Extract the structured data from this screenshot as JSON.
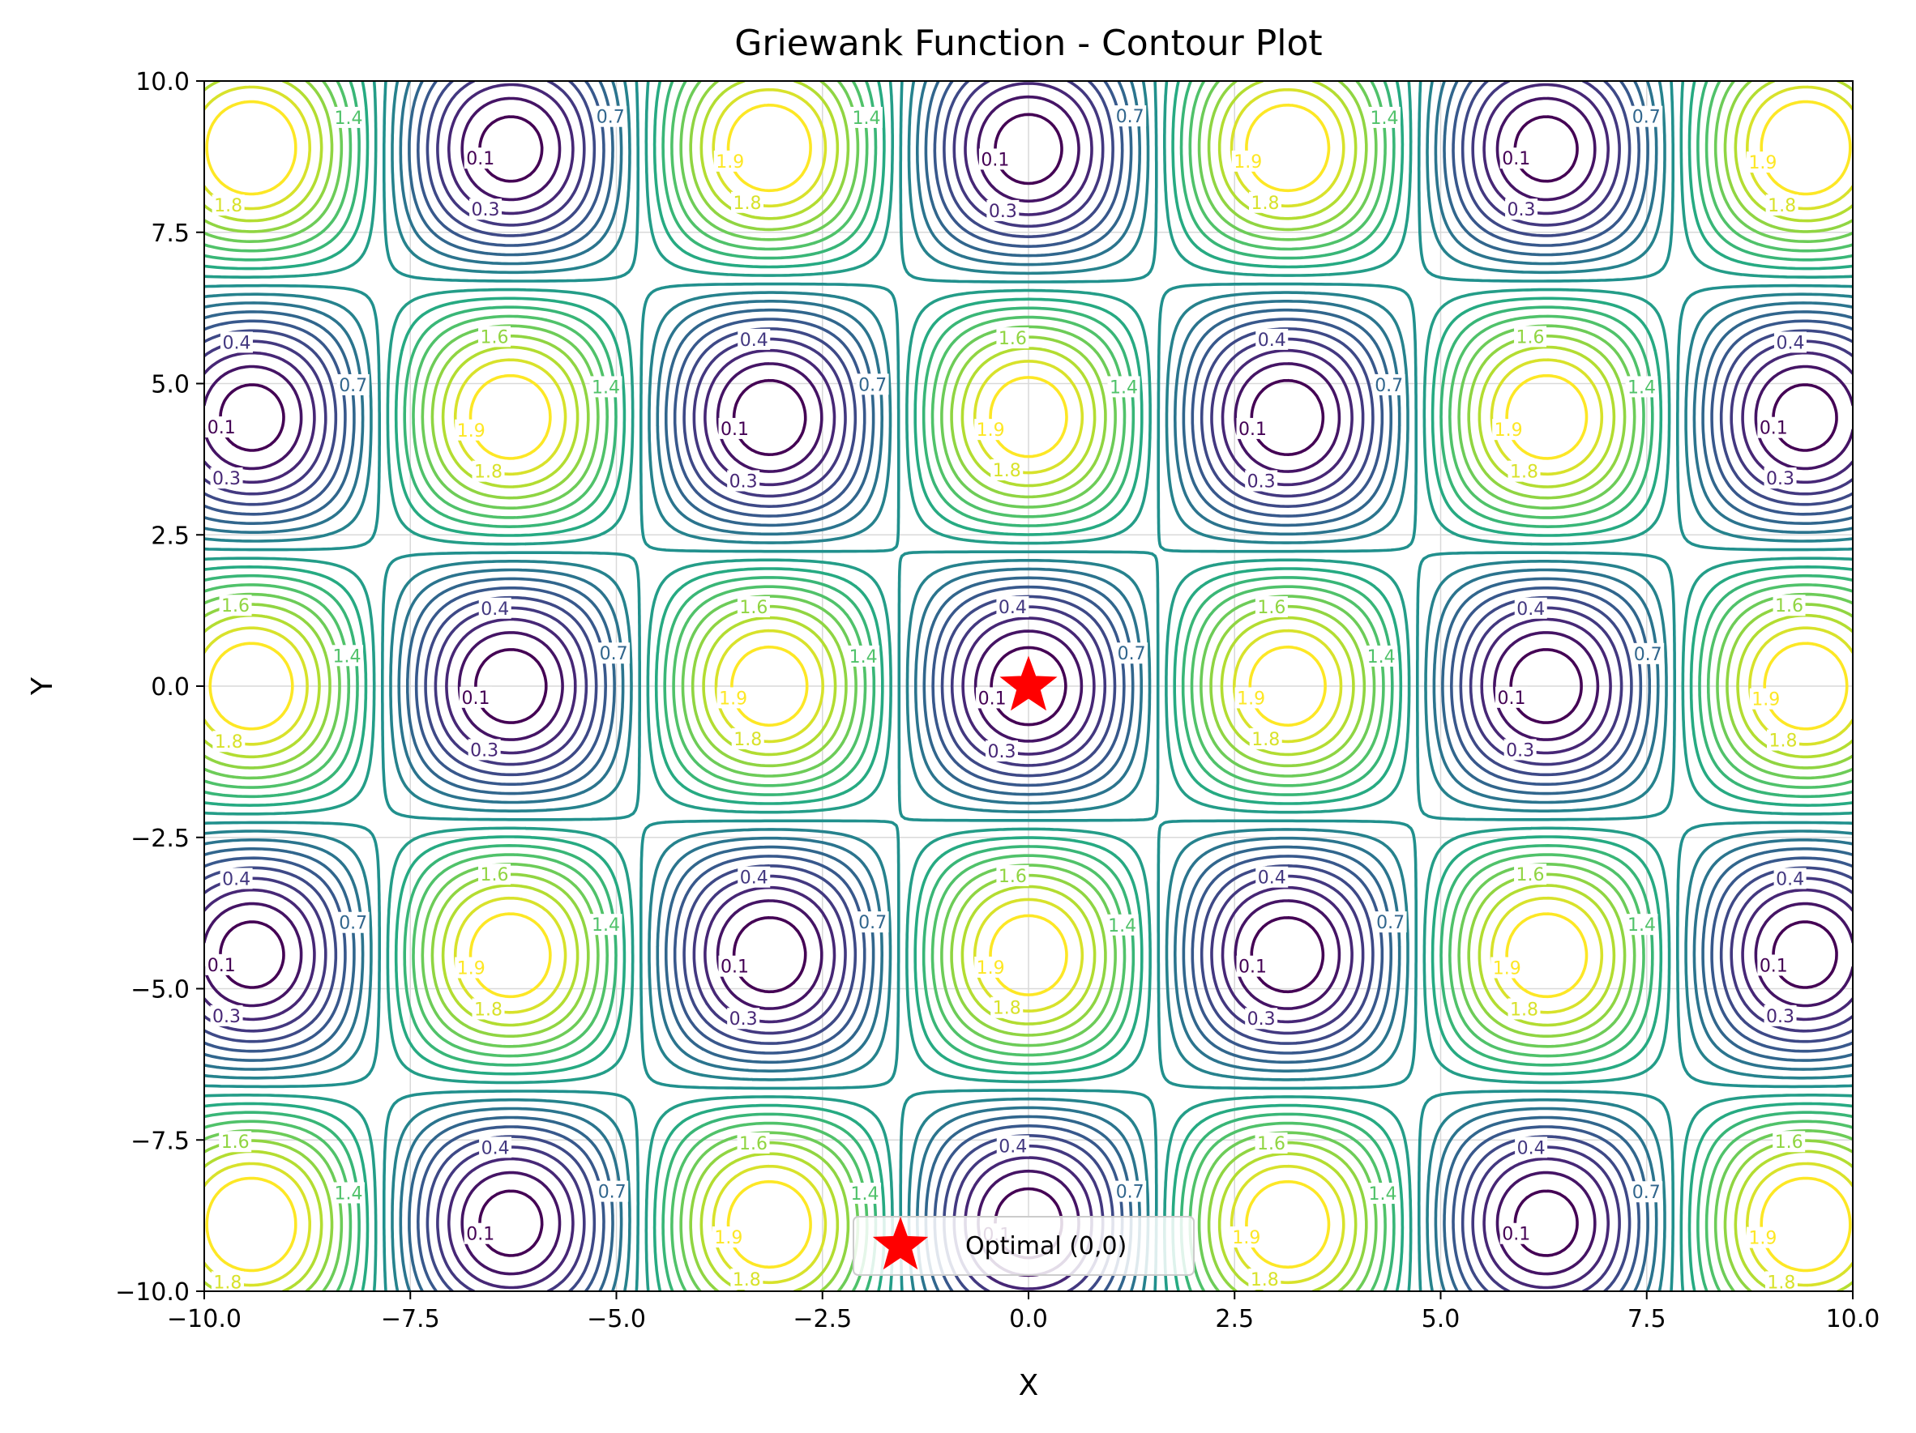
{
  "chart_data": {
    "type": "contour",
    "title": "Griewank Function - Contour Plot",
    "xlabel": "X",
    "ylabel": "Y",
    "xlim": [
      -10.0,
      10.0
    ],
    "ylim": [
      -10.0,
      10.0
    ],
    "xticks": [
      -10.0,
      -7.5,
      -5.0,
      -2.5,
      0.0,
      2.5,
      5.0,
      7.5,
      10.0
    ],
    "yticks": [
      -10.0,
      -7.5,
      -5.0,
      -2.5,
      0.0,
      2.5,
      5.0,
      7.5,
      10.0
    ],
    "xtick_labels": [
      "−10.0",
      "−7.5",
      "−5.0",
      "−2.5",
      "0.0",
      "2.5",
      "5.0",
      "7.5",
      "10.0"
    ],
    "ytick_labels": [
      "−10.0",
      "−7.5",
      "−5.0",
      "−2.5",
      "0.0",
      "2.5",
      "5.0",
      "7.5",
      "10.0"
    ],
    "function": "griewank",
    "levels": [
      0.1,
      0.2,
      0.3,
      0.4,
      0.5,
      0.6,
      0.7,
      0.8,
      0.9,
      1.0,
      1.1,
      1.2,
      1.3,
      1.4,
      1.5,
      1.6,
      1.7,
      1.8,
      1.9
    ],
    "colormap": "viridis",
    "grid": true,
    "marker": {
      "x": 0,
      "y": 0,
      "shape": "star",
      "color": "#ff0000",
      "label": "Optimal (0,0)"
    },
    "legend": {
      "entries": [
        "Optimal (0,0)"
      ],
      "placement": "lower center"
    }
  }
}
